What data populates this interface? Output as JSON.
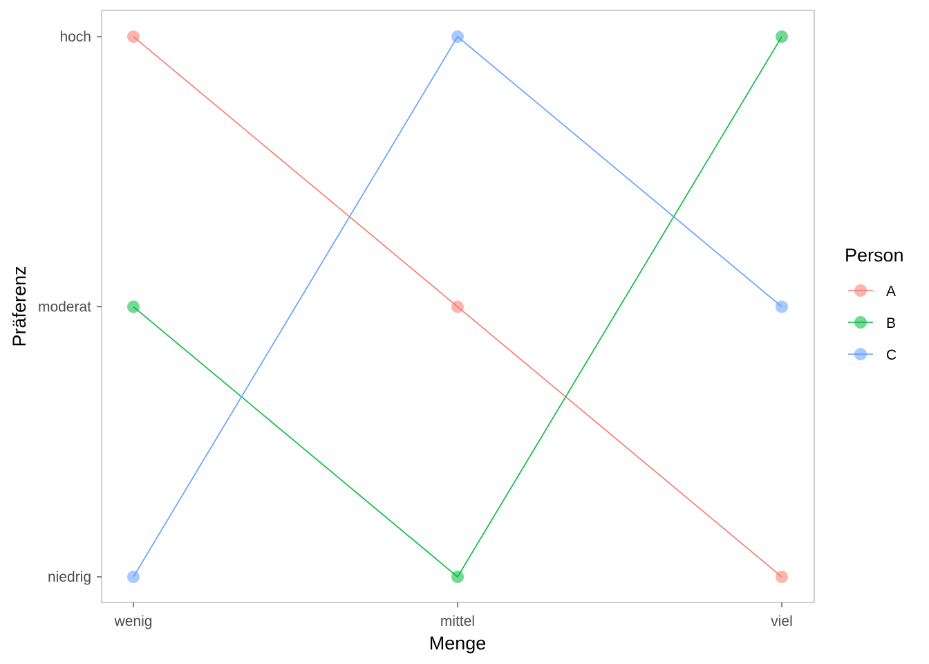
{
  "chart_data": {
    "type": "line",
    "xlabel": "Menge",
    "ylabel": "Präferenz",
    "x_categories": [
      "wenig",
      "mittel",
      "viel"
    ],
    "y_categories": [
      "niedrig",
      "moderat",
      "hoch"
    ],
    "grid": false,
    "legend": {
      "title": "Person",
      "position": "right"
    },
    "series": [
      {
        "name": "A",
        "color": "#F8766D",
        "values": [
          "hoch",
          "moderat",
          "niedrig"
        ]
      },
      {
        "name": "B",
        "color": "#00BA38",
        "values": [
          "moderat",
          "niedrig",
          "hoch"
        ]
      },
      {
        "name": "C",
        "color": "#619CFF",
        "values": [
          "niedrig",
          "hoch",
          "moderat"
        ]
      }
    ]
  }
}
